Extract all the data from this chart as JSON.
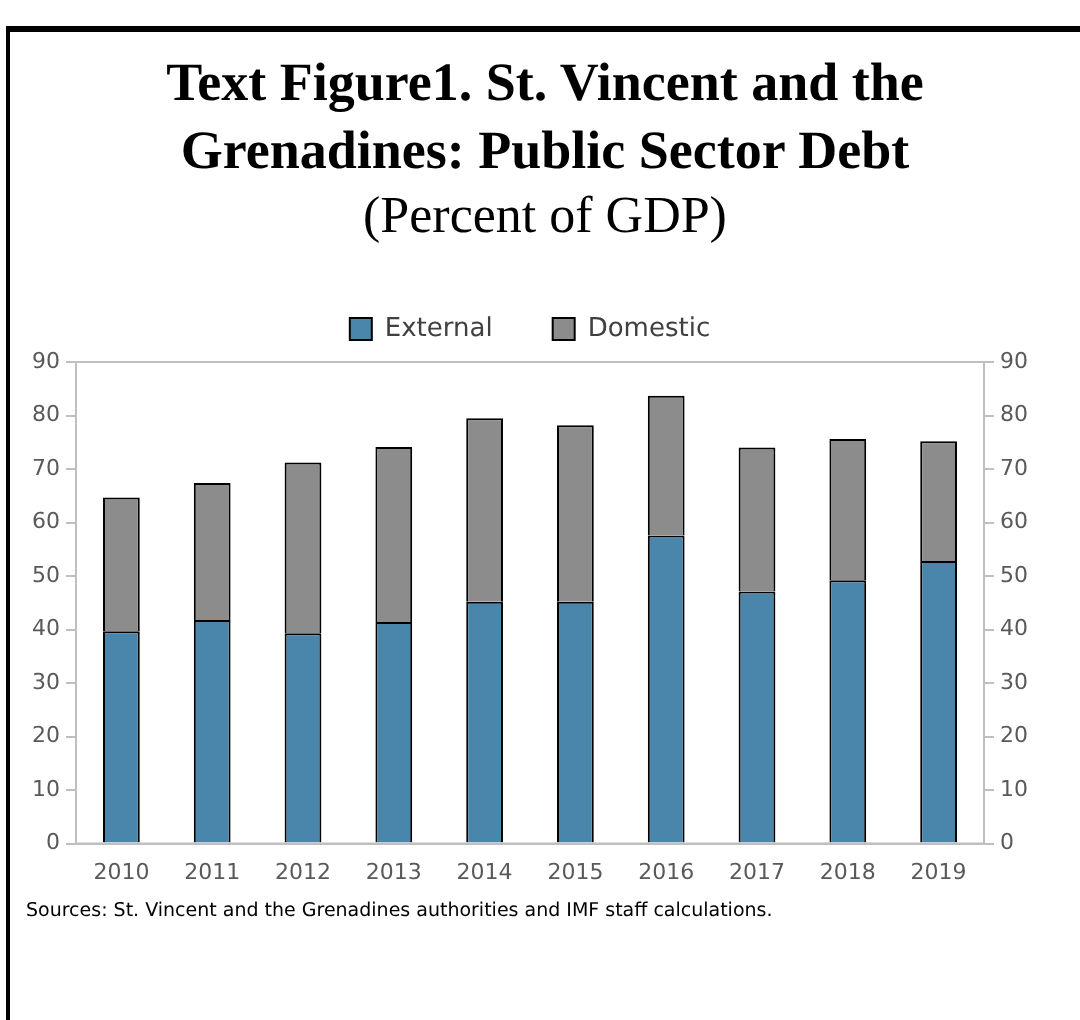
{
  "chart_data": {
    "type": "bar",
    "title": "Text Figure1. St. Vincent and the Grenadines: Public Sector Debt",
    "subtitle": "(Percent of GDP)",
    "categories": [
      "2010",
      "2011",
      "2012",
      "2013",
      "2014",
      "2015",
      "2016",
      "2017",
      "2018",
      "2019"
    ],
    "stacked": true,
    "series": [
      {
        "name": "External",
        "color": "#4a86ac",
        "values": [
          39.7,
          41.8,
          39.3,
          41.4,
          45.2,
          45.2,
          57.6,
          47.1,
          49.2,
          52.8
        ]
      },
      {
        "name": "Domestic",
        "color": "#8c8c8c",
        "values": [
          25.0,
          25.6,
          31.9,
          32.7,
          34.3,
          33.0,
          26.1,
          26.9,
          26.4,
          22.4
        ]
      }
    ],
    "ylim": [
      0,
      90
    ],
    "yticks": [
      0,
      10,
      20,
      30,
      40,
      50,
      60,
      70,
      80,
      90
    ],
    "y2lim": [
      0,
      90
    ],
    "y2ticks": [
      0,
      10,
      20,
      30,
      40,
      50,
      60,
      70,
      80,
      90
    ],
    "grid": false,
    "legend": "top",
    "annotations": [
      "Sources: St. Vincent and the Grenadines authorities and IMF staff calculations."
    ]
  }
}
